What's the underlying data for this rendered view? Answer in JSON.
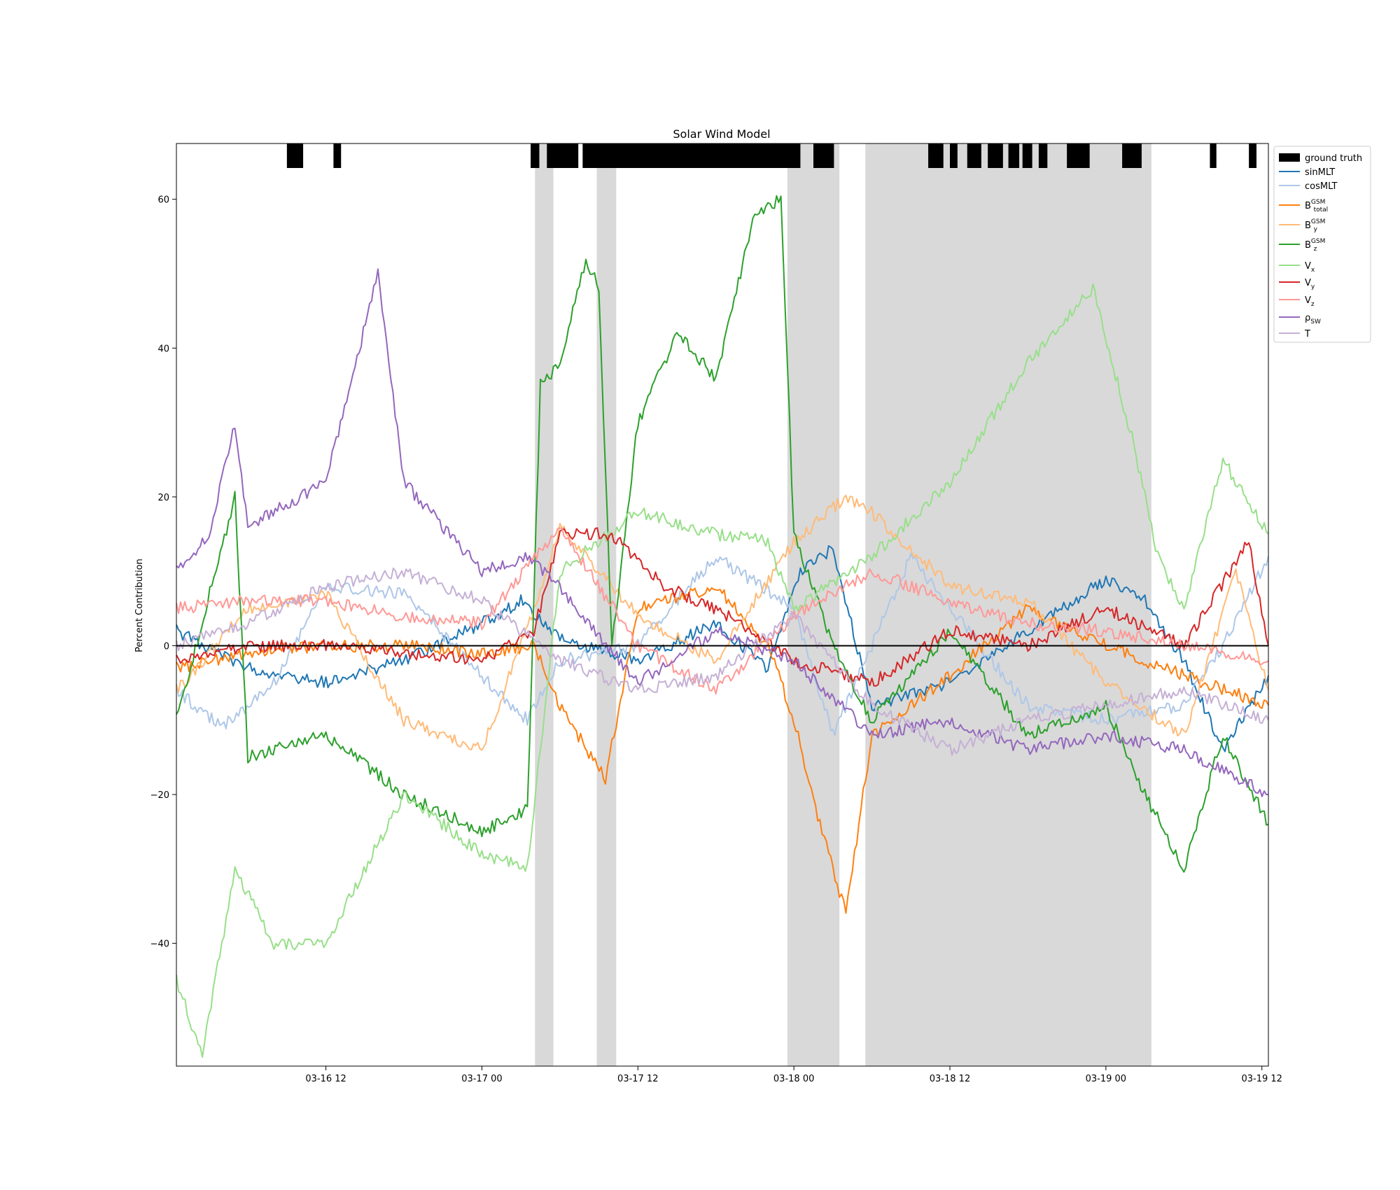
{
  "chart_data": {
    "type": "line",
    "title": "Solar Wind Model",
    "xlabel": "",
    "ylabel": "Percent Contribution",
    "x_range": [
      "2011-03-16 00:30",
      "2011-03-19 12:30"
    ],
    "ylim": [
      -56.5,
      67.5
    ],
    "x_ticks": [
      {
        "t": "2011-03-16 12:00",
        "label": "03-16 12"
      },
      {
        "t": "2011-03-17 00:00",
        "label": "03-17 00"
      },
      {
        "t": "2011-03-17 12:00",
        "label": "03-17 12"
      },
      {
        "t": "2011-03-18 00:00",
        "label": "03-18 00"
      },
      {
        "t": "2011-03-18 12:00",
        "label": "03-18 12"
      },
      {
        "t": "2011-03-19 00:00",
        "label": "03-19 00"
      },
      {
        "t": "2011-03-19 12:00",
        "label": "03-19 12"
      }
    ],
    "y_ticks": [
      -40,
      -20,
      0,
      20,
      40,
      60
    ],
    "grid": false,
    "legend_placement": "outside-right-top",
    "ground_truth": {
      "label": "ground truth",
      "color": "#000000",
      "intervals": [
        [
          "2011-03-16 09:00",
          "2011-03-16 10:15"
        ],
        [
          "2011-03-16 12:35",
          "2011-03-16 13:10"
        ],
        [
          "2011-03-17 03:45",
          "2011-03-17 04:25"
        ],
        [
          "2011-03-17 05:00",
          "2011-03-17 07:25"
        ],
        [
          "2011-03-17 07:45",
          "2011-03-17 24:30"
        ],
        [
          "2011-03-18 01:30",
          "2011-03-18 03:05"
        ],
        [
          "2011-03-18 10:20",
          "2011-03-18 11:30"
        ],
        [
          "2011-03-18 12:00",
          "2011-03-18 12:35"
        ],
        [
          "2011-03-18 13:20",
          "2011-03-18 14:25"
        ],
        [
          "2011-03-18 14:55",
          "2011-03-18 16:05"
        ],
        [
          "2011-03-18 16:30",
          "2011-03-18 17:20"
        ],
        [
          "2011-03-18 17:35",
          "2011-03-18 18:20"
        ],
        [
          "2011-03-18 18:50",
          "2011-03-18 19:30"
        ],
        [
          "2011-03-18 21:00",
          "2011-03-18 22:45"
        ],
        [
          "2011-03-19 01:15",
          "2011-03-19 02:45"
        ],
        [
          "2011-03-19 08:00",
          "2011-03-19 08:30"
        ],
        [
          "2011-03-19 11:00",
          "2011-03-19 11:35"
        ]
      ]
    },
    "shaded_regions": {
      "color": "#d9d9d9",
      "intervals": [
        [
          "2011-03-17 04:05",
          "2011-03-17 05:30"
        ],
        [
          "2011-03-17 08:50",
          "2011-03-17 10:20"
        ],
        [
          "2011-03-17 23:30",
          "2011-03-18 03:30"
        ],
        [
          "2011-03-18 05:30",
          "2011-03-19 03:30"
        ]
      ]
    },
    "series": [
      {
        "name": "sinMLT",
        "base": "B",
        "sub": "",
        "sup": "",
        "color": "#1f77b4",
        "values": [
          [
            "2011-03-16 00:30",
            2
          ],
          [
            "2011-03-16 06:00",
            -3
          ],
          [
            "2011-03-16 12:00",
            -5
          ],
          [
            "2011-03-16 18:00",
            -2
          ],
          [
            "2011-03-17 00:00",
            3
          ],
          [
            "2011-03-17 03:00",
            6
          ],
          [
            "2011-03-17 06:00",
            1
          ],
          [
            "2011-03-17 12:00",
            -2
          ],
          [
            "2011-03-17 18:00",
            3
          ],
          [
            "2011-03-17 22:00",
            -3
          ],
          [
            "2011-03-18 00:30",
            10
          ],
          [
            "2011-03-18 03:00",
            13
          ],
          [
            "2011-03-18 06:00",
            -8
          ],
          [
            "2011-03-18 12:00",
            -5
          ],
          [
            "2011-03-18 18:00",
            2
          ],
          [
            "2011-03-19 00:00",
            9
          ],
          [
            "2011-03-19 03:00",
            6
          ],
          [
            "2011-03-19 06:00",
            -2
          ],
          [
            "2011-03-19 09:00",
            -14
          ],
          [
            "2011-03-19 12:30",
            -4
          ]
        ]
      },
      {
        "name": "cosMLT",
        "base": "",
        "sub": "",
        "sup": "",
        "color": "#aec7e8",
        "values": [
          [
            "2011-03-16 00:30",
            -6
          ],
          [
            "2011-03-16 04:00",
            -11
          ],
          [
            "2011-03-16 08:00",
            -5
          ],
          [
            "2011-03-16 12:00",
            8
          ],
          [
            "2011-03-16 18:00",
            7
          ],
          [
            "2011-03-17 00:00",
            -4
          ],
          [
            "2011-03-17 03:30",
            -10
          ],
          [
            "2011-03-17 06:00",
            -2
          ],
          [
            "2011-03-17 12:00",
            0
          ],
          [
            "2011-03-17 18:00",
            12
          ],
          [
            "2011-03-18 00:00",
            5
          ],
          [
            "2011-03-18 03:00",
            -12
          ],
          [
            "2011-03-18 06:00",
            0
          ],
          [
            "2011-03-18 09:00",
            12
          ],
          [
            "2011-03-18 12:00",
            5
          ],
          [
            "2011-03-18 18:00",
            -8
          ],
          [
            "2011-03-19 00:00",
            -10
          ],
          [
            "2011-03-19 06:00",
            -8
          ],
          [
            "2011-03-19 09:00",
            0
          ],
          [
            "2011-03-19 12:30",
            12
          ]
        ]
      },
      {
        "name": "B_total^GSM",
        "base": "B",
        "sub": "total",
        "sup": "GSM",
        "color": "#ff7f0e",
        "values": [
          [
            "2011-03-16 00:30",
            -3
          ],
          [
            "2011-03-16 06:00",
            -1
          ],
          [
            "2011-03-16 12:00",
            0
          ],
          [
            "2011-03-16 18:00",
            0
          ],
          [
            "2011-03-17 00:00",
            -1
          ],
          [
            "2011-03-17 04:00",
            0
          ],
          [
            "2011-03-17 06:00",
            -8
          ],
          [
            "2011-03-17 09:30",
            -18
          ],
          [
            "2011-03-17 12:00",
            5
          ],
          [
            "2011-03-17 18:00",
            8
          ],
          [
            "2011-03-17 22:00",
            0
          ],
          [
            "2011-03-18 00:00",
            -10
          ],
          [
            "2011-03-18 02:00",
            -24
          ],
          [
            "2011-03-18 04:00",
            -36
          ],
          [
            "2011-03-18 06:00",
            -12
          ],
          [
            "2011-03-18 12:00",
            -4
          ],
          [
            "2011-03-18 18:00",
            5
          ],
          [
            "2011-03-19 00:00",
            0
          ],
          [
            "2011-03-19 06:00",
            -4
          ],
          [
            "2011-03-19 12:30",
            -8
          ]
        ]
      },
      {
        "name": "B_y^GSM",
        "base": "B",
        "sub": "y",
        "sup": "GSM",
        "color": "#ffbb78",
        "values": [
          [
            "2011-03-16 00:30",
            -6
          ],
          [
            "2011-03-16 06:00",
            5
          ],
          [
            "2011-03-16 12:00",
            7
          ],
          [
            "2011-03-16 18:00",
            -10
          ],
          [
            "2011-03-17 00:00",
            -14
          ],
          [
            "2011-03-17 04:00",
            5
          ],
          [
            "2011-03-17 06:00",
            16
          ],
          [
            "2011-03-17 12:00",
            4
          ],
          [
            "2011-03-17 18:00",
            -2
          ],
          [
            "2011-03-18 00:00",
            14
          ],
          [
            "2011-03-18 04:00",
            20
          ],
          [
            "2011-03-18 06:00",
            18
          ],
          [
            "2011-03-18 12:00",
            8
          ],
          [
            "2011-03-18 18:00",
            6
          ],
          [
            "2011-03-19 00:00",
            -5
          ],
          [
            "2011-03-19 06:00",
            -12
          ],
          [
            "2011-03-19 10:00",
            10
          ],
          [
            "2011-03-19 12:30",
            -6
          ]
        ]
      },
      {
        "name": "B_z^GSM",
        "base": "B",
        "sub": "z",
        "sup": "GSM",
        "color": "#2ca02c",
        "values": [
          [
            "2011-03-16 00:30",
            -10
          ],
          [
            "2011-03-16 05:00",
            20
          ],
          [
            "2011-03-16 06:00",
            -15
          ],
          [
            "2011-03-16 12:00",
            -12
          ],
          [
            "2011-03-16 18:00",
            -20
          ],
          [
            "2011-03-17 00:00",
            -25
          ],
          [
            "2011-03-17 03:30",
            -22
          ],
          [
            "2011-03-17 04:30",
            35
          ],
          [
            "2011-03-17 06:00",
            38
          ],
          [
            "2011-03-17 08:00",
            52
          ],
          [
            "2011-03-17 09:00",
            48
          ],
          [
            "2011-03-17 10:00",
            0
          ],
          [
            "2011-03-17 12:00",
            30
          ],
          [
            "2011-03-17 15:00",
            42
          ],
          [
            "2011-03-17 18:00",
            36
          ],
          [
            "2011-03-17 21:00",
            58
          ],
          [
            "2011-03-17 23:00",
            60
          ],
          [
            "2011-03-18 00:00",
            15
          ],
          [
            "2011-03-18 03:00",
            0
          ],
          [
            "2011-03-18 06:00",
            -10
          ],
          [
            "2011-03-18 12:00",
            2
          ],
          [
            "2011-03-18 18:00",
            -12
          ],
          [
            "2011-03-19 00:00",
            -8
          ],
          [
            "2011-03-19 03:00",
            -20
          ],
          [
            "2011-03-19 06:00",
            -30
          ],
          [
            "2011-03-19 09:00",
            -12
          ],
          [
            "2011-03-19 12:30",
            -24
          ]
        ]
      },
      {
        "name": "V_x",
        "base": "V",
        "sub": "x",
        "sup": "",
        "color": "#98df8a",
        "values": [
          [
            "2011-03-16 00:30",
            -45
          ],
          [
            "2011-03-16 02:30",
            -55
          ],
          [
            "2011-03-16 05:00",
            -30
          ],
          [
            "2011-03-16 08:00",
            -40
          ],
          [
            "2011-03-16 12:00",
            -40
          ],
          [
            "2011-03-16 18:00",
            -20
          ],
          [
            "2011-03-17 00:00",
            -28
          ],
          [
            "2011-03-17 03:30",
            -30
          ],
          [
            "2011-03-17 06:00",
            10
          ],
          [
            "2011-03-17 12:00",
            18
          ],
          [
            "2011-03-17 18:00",
            15
          ],
          [
            "2011-03-17 22:00",
            14
          ],
          [
            "2011-03-18 00:00",
            5
          ],
          [
            "2011-03-18 06:00",
            12
          ],
          [
            "2011-03-18 12:00",
            22
          ],
          [
            "2011-03-18 18:00",
            38
          ],
          [
            "2011-03-18 23:00",
            48
          ],
          [
            "2011-03-19 02:00",
            28
          ],
          [
            "2011-03-19 04:00",
            12
          ],
          [
            "2011-03-19 06:00",
            5
          ],
          [
            "2011-03-19 09:00",
            25
          ],
          [
            "2011-03-19 12:30",
            15
          ]
        ]
      },
      {
        "name": "V_y",
        "base": "V",
        "sub": "y",
        "sup": "",
        "color": "#d62728",
        "values": [
          [
            "2011-03-16 00:30",
            -2
          ],
          [
            "2011-03-16 06:00",
            0
          ],
          [
            "2011-03-16 12:00",
            0
          ],
          [
            "2011-03-16 18:00",
            -1
          ],
          [
            "2011-03-17 00:00",
            -2
          ],
          [
            "2011-03-17 04:00",
            2
          ],
          [
            "2011-03-17 06:00",
            15
          ],
          [
            "2011-03-17 10:00",
            15
          ],
          [
            "2011-03-17 14:00",
            8
          ],
          [
            "2011-03-17 18:00",
            5
          ],
          [
            "2011-03-18 00:00",
            -2
          ],
          [
            "2011-03-18 06:00",
            -5
          ],
          [
            "2011-03-18 12:00",
            2
          ],
          [
            "2011-03-18 18:00",
            0
          ],
          [
            "2011-03-19 00:00",
            5
          ],
          [
            "2011-03-19 06:00",
            0
          ],
          [
            "2011-03-19 11:00",
            14
          ],
          [
            "2011-03-19 12:30",
            0
          ]
        ]
      },
      {
        "name": "V_z",
        "base": "V",
        "sub": "z",
        "sup": "",
        "color": "#ff9896",
        "values": [
          [
            "2011-03-16 00:30",
            5
          ],
          [
            "2011-03-16 06:00",
            6
          ],
          [
            "2011-03-16 12:00",
            6
          ],
          [
            "2011-03-16 18:00",
            4
          ],
          [
            "2011-03-17 00:00",
            3
          ],
          [
            "2011-03-17 06:00",
            16
          ],
          [
            "2011-03-17 12:00",
            0
          ],
          [
            "2011-03-17 18:00",
            -6
          ],
          [
            "2011-03-18 00:00",
            4
          ],
          [
            "2011-03-18 06:00",
            10
          ],
          [
            "2011-03-18 12:00",
            6
          ],
          [
            "2011-03-18 18:00",
            3
          ],
          [
            "2011-03-19 00:00",
            2
          ],
          [
            "2011-03-19 06:00",
            0
          ],
          [
            "2011-03-19 12:30",
            -2
          ]
        ]
      },
      {
        "name": "ρ_SW",
        "base": "ρ",
        "sub": "SW",
        "sup": "",
        "color": "#9467bd",
        "values": [
          [
            "2011-03-16 00:30",
            10
          ],
          [
            "2011-03-16 03:00",
            15
          ],
          [
            "2011-03-16 05:00",
            30
          ],
          [
            "2011-03-16 06:00",
            16
          ],
          [
            "2011-03-16 12:00",
            22
          ],
          [
            "2011-03-16 16:00",
            50
          ],
          [
            "2011-03-16 18:00",
            22
          ],
          [
            "2011-03-17 00:00",
            10
          ],
          [
            "2011-03-17 03:30",
            12
          ],
          [
            "2011-03-17 06:00",
            8
          ],
          [
            "2011-03-17 12:00",
            -5
          ],
          [
            "2011-03-17 18:00",
            2
          ],
          [
            "2011-03-18 00:00",
            -2
          ],
          [
            "2011-03-18 06:00",
            -12
          ],
          [
            "2011-03-18 12:00",
            -10
          ],
          [
            "2011-03-18 18:00",
            -14
          ],
          [
            "2011-03-19 00:00",
            -12
          ],
          [
            "2011-03-19 06:00",
            -14
          ],
          [
            "2011-03-19 12:30",
            -20
          ]
        ]
      },
      {
        "name": "T",
        "base": "T",
        "sub": "",
        "sup": "",
        "color": "#c5b0d5",
        "values": [
          [
            "2011-03-16 00:30",
            0
          ],
          [
            "2011-03-16 06:00",
            3
          ],
          [
            "2011-03-16 12:00",
            8
          ],
          [
            "2011-03-16 18:00",
            10
          ],
          [
            "2011-03-17 00:00",
            6
          ],
          [
            "2011-03-17 06:00",
            -2
          ],
          [
            "2011-03-17 12:00",
            -6
          ],
          [
            "2011-03-17 18:00",
            -4
          ],
          [
            "2011-03-18 00:00",
            4
          ],
          [
            "2011-03-18 06:00",
            -8
          ],
          [
            "2011-03-18 12:00",
            -14
          ],
          [
            "2011-03-18 18:00",
            -10
          ],
          [
            "2011-03-19 00:00",
            -8
          ],
          [
            "2011-03-19 06:00",
            -6
          ],
          [
            "2011-03-19 12:30",
            -10
          ]
        ]
      }
    ]
  }
}
